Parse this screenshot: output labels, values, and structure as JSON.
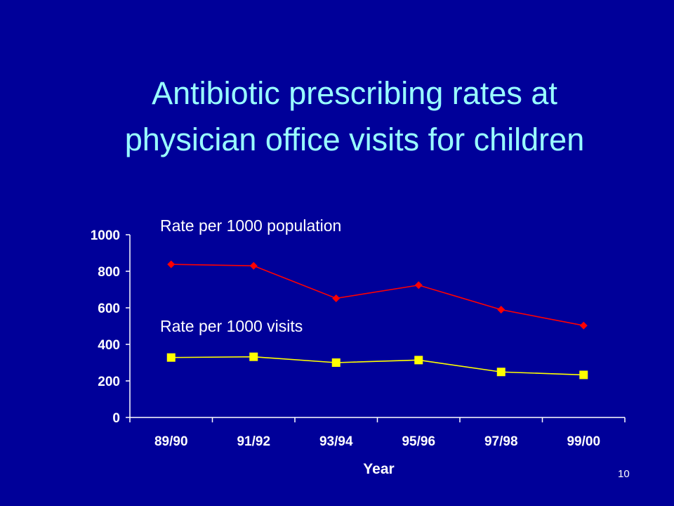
{
  "slide": {
    "title_line1": "Antibiotic prescribing rates at",
    "title_line2": "physician office visits for children",
    "page_number": "10"
  },
  "chart_data": {
    "type": "line",
    "title": "",
    "xlabel": "Year",
    "ylabel": "",
    "categories": [
      "89/90",
      "91/92",
      "93/94",
      "95/96",
      "97/98",
      "99/00"
    ],
    "ylim": [
      0,
      1000
    ],
    "yticks": [
      0,
      200,
      400,
      600,
      800,
      1000
    ],
    "grid": false,
    "series": [
      {
        "name": "Rate per 1000 population",
        "values": [
          838,
          830,
          652,
          724,
          590,
          503
        ],
        "color": "#FF0000",
        "marker": "diamond",
        "marker_color": "#FF0000"
      },
      {
        "name": "Rate per 1000 visits",
        "values": [
          328,
          332,
          300,
          314,
          249,
          233
        ],
        "color": "#FFFF00",
        "marker": "square",
        "marker_color": "#FFFF00"
      }
    ],
    "colors": {
      "plot_background": "#000099",
      "axis": "#FFFFFF",
      "text": "#FFFFFF"
    }
  }
}
